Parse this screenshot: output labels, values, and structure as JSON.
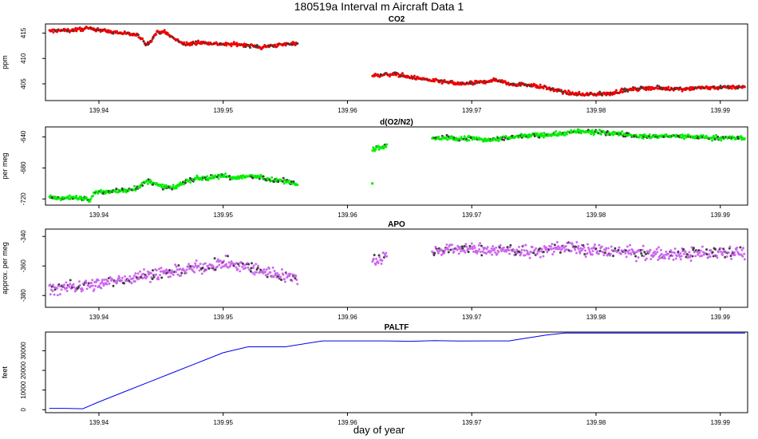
{
  "figure": {
    "title": "180519a   Interval m Aircraft Data 1",
    "xlabel": "day of year"
  },
  "chart_data": [
    {
      "type": "scatter",
      "title": "CO2",
      "ylabel": "ppm",
      "xlim": [
        139.9357,
        139.9922
      ],
      "ylim": [
        401.7,
        416.8
      ],
      "xticks": [
        139.94,
        139.95,
        139.96,
        139.97,
        139.98,
        139.99
      ],
      "xtick_labels": [
        "139.94",
        "139.95",
        "139.96",
        "139.97",
        "139.98",
        "139.99"
      ],
      "yticks": [
        405,
        410,
        415
      ],
      "ytick_labels": [
        "405",
        "410",
        "415"
      ],
      "point_color": "#ee0000",
      "noise": 0.3,
      "series": [
        {
          "name": "segment 1",
          "x": [
            139.936,
            139.938,
            139.939,
            139.94,
            139.941,
            139.942,
            139.943,
            139.9435,
            139.9438,
            139.9442,
            139.9446,
            139.9452,
            139.9458,
            139.9464,
            139.947,
            139.948,
            139.949,
            139.95,
            139.951,
            139.952,
            139.953,
            139.954,
            139.955,
            139.956
          ],
          "y": [
            415.4,
            415.6,
            415.9,
            415.7,
            415.2,
            415.0,
            414.6,
            413.9,
            412.6,
            413.6,
            415.0,
            415.4,
            414.3,
            413.4,
            412.7,
            413.2,
            413.0,
            412.8,
            412.8,
            412.6,
            412.2,
            412.5,
            412.8,
            413.1
          ]
        },
        {
          "name": "segment 2",
          "x": [
            139.962,
            139.963,
            139.964,
            139.965,
            139.966,
            139.967,
            139.968,
            139.969,
            139.97,
            139.971,
            139.972,
            139.973,
            139.974,
            139.975,
            139.976,
            139.977,
            139.978,
            139.979,
            139.98,
            139.981,
            139.982,
            139.983,
            139.984,
            139.985,
            139.986,
            139.987,
            139.988,
            139.989,
            139.99,
            139.991,
            139.992
          ],
          "y": [
            406.6,
            406.8,
            406.9,
            406.3,
            406.0,
            405.6,
            405.3,
            405.0,
            405.1,
            405.4,
            405.8,
            405.0,
            404.9,
            404.7,
            404.2,
            403.6,
            403.1,
            402.9,
            403.0,
            403.0,
            403.6,
            403.9,
            404.2,
            404.2,
            404.0,
            404.0,
            404.2,
            404.2,
            404.3,
            404.4,
            404.3
          ]
        }
      ]
    },
    {
      "type": "scatter",
      "title": "d(O2/N2)",
      "ylabel": "per meg",
      "xlim": [
        139.9357,
        139.9922
      ],
      "ylim": [
        -728,
        -627
      ],
      "xticks": [
        139.94,
        139.95,
        139.96,
        139.97,
        139.98,
        139.99
      ],
      "xtick_labels": [
        "139.94",
        "139.95",
        "139.96",
        "139.97",
        "139.98",
        "139.99"
      ],
      "yticks": [
        -720,
        -680,
        -640
      ],
      "ytick_labels": [
        "-720",
        "-680",
        "-640"
      ],
      "point_color": "#00ee00",
      "noise": 2.5,
      "series": [
        {
          "name": "segment 1",
          "x": [
            139.936,
            139.937,
            139.938,
            139.939,
            139.9393,
            139.9396,
            139.94,
            139.941,
            139.942,
            139.943,
            139.944,
            139.945,
            139.946,
            139.947,
            139.948,
            139.949,
            139.95,
            139.951,
            139.952,
            139.953,
            139.954,
            139.955,
            139.956
          ],
          "y": [
            -718,
            -719,
            -718,
            -720,
            -722,
            -712,
            -711,
            -711,
            -709,
            -706,
            -697,
            -704,
            -706,
            -697,
            -693,
            -693,
            -690,
            -693,
            -691,
            -691,
            -696,
            -697,
            -700
          ]
        },
        {
          "name": "segment 2",
          "x": [
            139.962,
            139.9624,
            139.9628,
            139.9632
          ],
          "y": [
            -656,
            -654,
            -652,
            -651
          ]
        },
        {
          "name": "outlier",
          "x": [
            139.962
          ],
          "y": [
            -700
          ]
        },
        {
          "name": "segment 3",
          "x": [
            139.9668,
            139.968,
            139.969,
            139.97,
            139.971,
            139.972,
            139.973,
            139.974,
            139.975,
            139.976,
            139.977,
            139.978,
            139.979,
            139.98,
            139.981,
            139.982,
            139.983,
            139.984,
            139.985,
            139.986,
            139.987,
            139.988,
            139.989,
            139.99,
            139.991,
            139.992
          ],
          "y": [
            -643,
            -640,
            -643,
            -641,
            -644,
            -644,
            -641,
            -639,
            -638,
            -637,
            -636,
            -634,
            -633,
            -634,
            -635,
            -636,
            -638,
            -640,
            -639,
            -639,
            -639,
            -640,
            -641,
            -641,
            -641,
            -642
          ]
        }
      ]
    },
    {
      "type": "scatter",
      "title": "APO",
      "ylabel": "approx. per meg",
      "xlim": [
        139.9357,
        139.9922
      ],
      "ylim": [
        -388,
        -335
      ],
      "xticks": [
        139.94,
        139.95,
        139.96,
        139.97,
        139.98,
        139.99
      ],
      "xtick_labels": [
        "139.94",
        "139.95",
        "139.96",
        "139.97",
        "139.98",
        "139.99"
      ],
      "yticks": [
        -380,
        -360,
        -340
      ],
      "ytick_labels": [
        "-380",
        "-360",
        "-340"
      ],
      "point_color": "#cc66ee",
      "noise": 3.5,
      "series": [
        {
          "name": "segment 1",
          "x": [
            139.936,
            139.938,
            139.94,
            139.942,
            139.944,
            139.946,
            139.948,
            139.95,
            139.952,
            139.954,
            139.956
          ],
          "y": [
            -376,
            -374,
            -372,
            -369,
            -366,
            -364,
            -361,
            -358,
            -361,
            -365,
            -368
          ]
        },
        {
          "name": "segment 2",
          "x": [
            139.962,
            139.9624,
            139.9628,
            139.9632
          ],
          "y": [
            -355,
            -356,
            -354,
            -353
          ]
        },
        {
          "name": "segment 3",
          "x": [
            139.9668,
            139.969,
            139.971,
            139.973,
            139.975,
            139.977,
            139.979,
            139.981,
            139.983,
            139.985,
            139.987,
            139.989,
            139.991,
            139.992
          ],
          "y": [
            -350,
            -348,
            -349,
            -349,
            -351,
            -347,
            -349,
            -350,
            -351,
            -352,
            -352,
            -351,
            -350,
            -351
          ]
        }
      ]
    },
    {
      "type": "line",
      "title": "PALTF",
      "ylabel": "feet",
      "xlim": [
        139.9357,
        139.9922
      ],
      "ylim": [
        -1500,
        39500
      ],
      "xticks": [
        139.94,
        139.95,
        139.96,
        139.97,
        139.98,
        139.99
      ],
      "xtick_labels": [
        "139.94",
        "139.95",
        "139.96",
        "139.97",
        "139.98",
        "139.99"
      ],
      "yticks": [
        0,
        10000,
        20000,
        30000
      ],
      "ytick_labels": [
        "0",
        "10000",
        "20000",
        "30000"
      ],
      "line_color": "#0000ee",
      "series": [
        {
          "name": "PALTF",
          "x": [
            139.936,
            139.9373,
            139.9387,
            139.94,
            139.942,
            139.944,
            139.946,
            139.948,
            139.95,
            139.952,
            139.953,
            139.954,
            139.955,
            139.956,
            139.957,
            139.958,
            139.9595,
            139.961,
            139.963,
            139.965,
            139.967,
            139.969,
            139.971,
            139.973,
            139.974,
            139.976,
            139.9775,
            139.979,
            139.981,
            139.983,
            139.985,
            139.987,
            139.989,
            139.992
          ],
          "y": [
            700,
            700,
            500,
            4000,
            9000,
            14000,
            19000,
            24000,
            29000,
            32000,
            32000,
            32000,
            32000,
            33000,
            34000,
            35000,
            35000,
            35000,
            35000,
            34800,
            35100,
            34900,
            35000,
            35000,
            36000,
            38000,
            39000,
            39000,
            39000,
            39000,
            39000,
            39000,
            39000,
            39000
          ]
        }
      ]
    }
  ]
}
